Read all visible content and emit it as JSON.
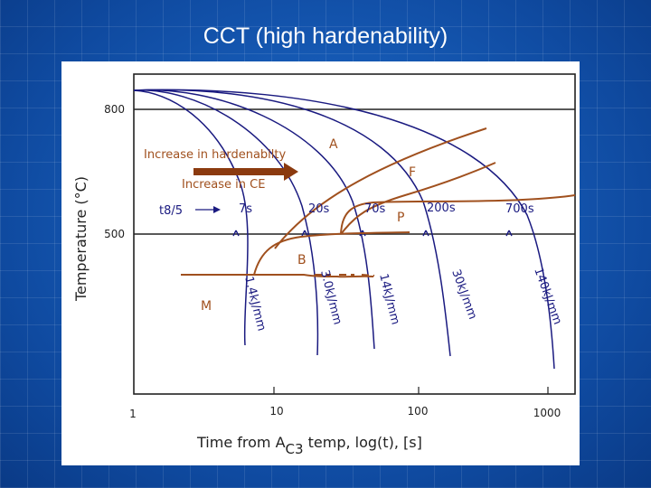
{
  "slide": {
    "title": "CCT (high hardenability)"
  },
  "diagram": {
    "y_axis_label": "Temperature  (°C)",
    "x_axis_label_main": "Time from A",
    "x_axis_label_sub": "C3",
    "x_axis_label_tail": " temp, log(t), [s]",
    "y_ticks": [
      "800",
      "500"
    ],
    "x_ticks": [
      "1",
      "10",
      "100",
      "1000"
    ],
    "phase_labels": {
      "austenite": "A",
      "ferrite": "F",
      "pearlite": "P",
      "bainite": "B",
      "martensite": "M"
    },
    "annotations": {
      "hardenability": "Increase in hardenabilty",
      "ce": "Increase in CE",
      "t85": "t8/5"
    },
    "cooling_times": [
      "7s",
      "20s",
      "70s",
      "200s",
      "700s"
    ],
    "heat_inputs": [
      "1.4kJ/mm",
      "3.0kJ/mm",
      "14kJ/mm",
      "30kJ/mm",
      "140kJ/mm"
    ],
    "colors": {
      "curve": "#1a1a80",
      "phase": "#a0501e",
      "arrow": "#8b3a0f"
    }
  }
}
